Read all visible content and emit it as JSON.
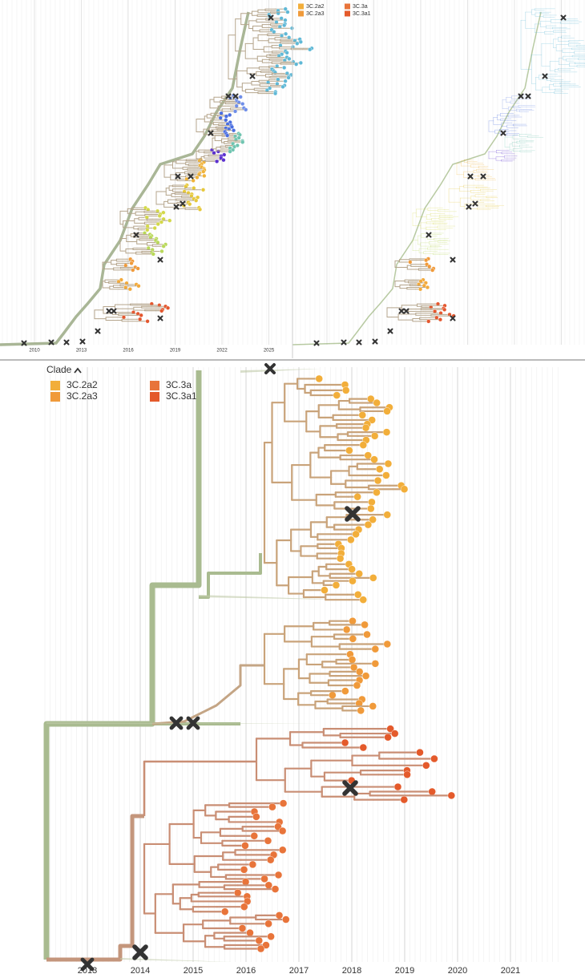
{
  "legend_top": [
    {
      "label": "3C.2a2",
      "color": "#f2ae3a"
    },
    {
      "label": "3C.2a3",
      "color": "#f09a3a"
    },
    {
      "label": "3C.3a",
      "color": "#e8743a"
    },
    {
      "label": "3C.3a1",
      "color": "#e45a2b"
    }
  ],
  "axis_top": [
    2010,
    2013,
    2016,
    2019,
    2022,
    2025
  ],
  "clade_panel": {
    "title": "Clade",
    "legend": [
      {
        "label": "3C.2a2",
        "color": "#f2ae3a"
      },
      {
        "label": "3C.2a3",
        "color": "#f09a3a"
      },
      {
        "label": "3C.3a",
        "color": "#e8743a"
      },
      {
        "label": "3C.3a1",
        "color": "#e45a2b"
      }
    ]
  },
  "axis_bottom": [
    2013,
    2014,
    2015,
    2016,
    2017,
    2018,
    2019,
    2020,
    2021
  ]
}
